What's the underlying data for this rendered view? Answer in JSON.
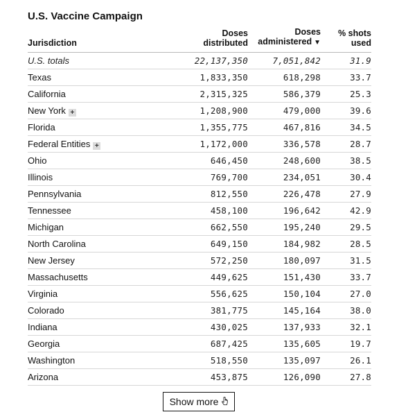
{
  "title": "U.S. Vaccine Campaign",
  "columns": {
    "jurisdiction": "Jurisdiction",
    "distributed_line1": "Doses",
    "distributed_line2": "distributed",
    "administered_line1": "Doses",
    "administered_line2": "administered",
    "administered_sort_indicator": "▼",
    "shots_line1": "% shots",
    "shots_line2": "used"
  },
  "rows": [
    {
      "name": "U.S. totals",
      "distributed": "22,137,350",
      "administered": "7,051,842",
      "pct": "31.9",
      "totals": true
    },
    {
      "name": "Texas",
      "distributed": "1,833,350",
      "administered": "618,298",
      "pct": "33.7"
    },
    {
      "name": "California",
      "distributed": "2,315,325",
      "administered": "586,379",
      "pct": "25.3"
    },
    {
      "name": "New York",
      "distributed": "1,208,900",
      "administered": "479,000",
      "pct": "39.6",
      "expandable": true
    },
    {
      "name": "Florida",
      "distributed": "1,355,775",
      "administered": "467,816",
      "pct": "34.5"
    },
    {
      "name": "Federal Entities",
      "distributed": "1,172,000",
      "administered": "336,578",
      "pct": "28.7",
      "expandable": true
    },
    {
      "name": "Ohio",
      "distributed": "646,450",
      "administered": "248,600",
      "pct": "38.5"
    },
    {
      "name": "Illinois",
      "distributed": "769,700",
      "administered": "234,051",
      "pct": "30.4"
    },
    {
      "name": "Pennsylvania",
      "distributed": "812,550",
      "administered": "226,478",
      "pct": "27.9"
    },
    {
      "name": "Tennessee",
      "distributed": "458,100",
      "administered": "196,642",
      "pct": "42.9"
    },
    {
      "name": "Michigan",
      "distributed": "662,550",
      "administered": "195,240",
      "pct": "29.5"
    },
    {
      "name": "North Carolina",
      "distributed": "649,150",
      "administered": "184,982",
      "pct": "28.5"
    },
    {
      "name": "New Jersey",
      "distributed": "572,250",
      "administered": "180,097",
      "pct": "31.5"
    },
    {
      "name": "Massachusetts",
      "distributed": "449,625",
      "administered": "151,430",
      "pct": "33.7"
    },
    {
      "name": "Virginia",
      "distributed": "556,625",
      "administered": "150,104",
      "pct": "27.0"
    },
    {
      "name": "Colorado",
      "distributed": "381,775",
      "administered": "145,164",
      "pct": "38.0"
    },
    {
      "name": "Indiana",
      "distributed": "430,025",
      "administered": "137,933",
      "pct": "32.1"
    },
    {
      "name": "Georgia",
      "distributed": "687,425",
      "administered": "135,605",
      "pct": "19.7"
    },
    {
      "name": "Washington",
      "distributed": "518,550",
      "administered": "135,097",
      "pct": "26.1"
    },
    {
      "name": "Arizona",
      "distributed": "453,875",
      "administered": "126,090",
      "pct": "27.8"
    }
  ],
  "expand_icon_glyph": "+",
  "show_more": {
    "label": "Show more",
    "icon": "pointer-cursor-icon"
  }
}
